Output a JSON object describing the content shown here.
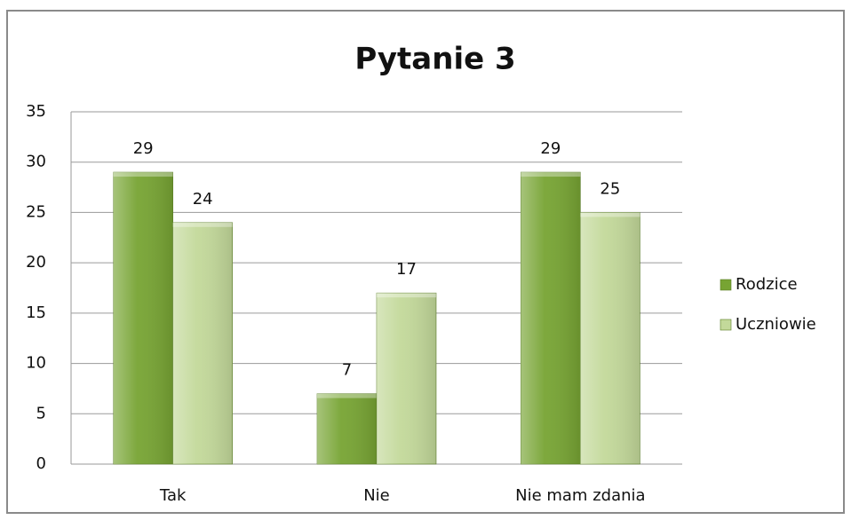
{
  "chart_data": {
    "type": "bar",
    "title": "Pytanie 3",
    "categories": [
      "Tak",
      "Nie",
      "Nie mam zdania"
    ],
    "series": [
      {
        "name": "Rodzice",
        "color": "#77a433",
        "values": [
          29,
          7,
          29
        ]
      },
      {
        "name": "Uczniowie",
        "color": "#c3d99a",
        "values": [
          24,
          17,
          25
        ]
      }
    ],
    "ylim": [
      0,
      35
    ],
    "yticks": [
      0,
      5,
      10,
      15,
      20,
      25,
      30,
      35
    ],
    "grid": true,
    "legend": "right"
  }
}
